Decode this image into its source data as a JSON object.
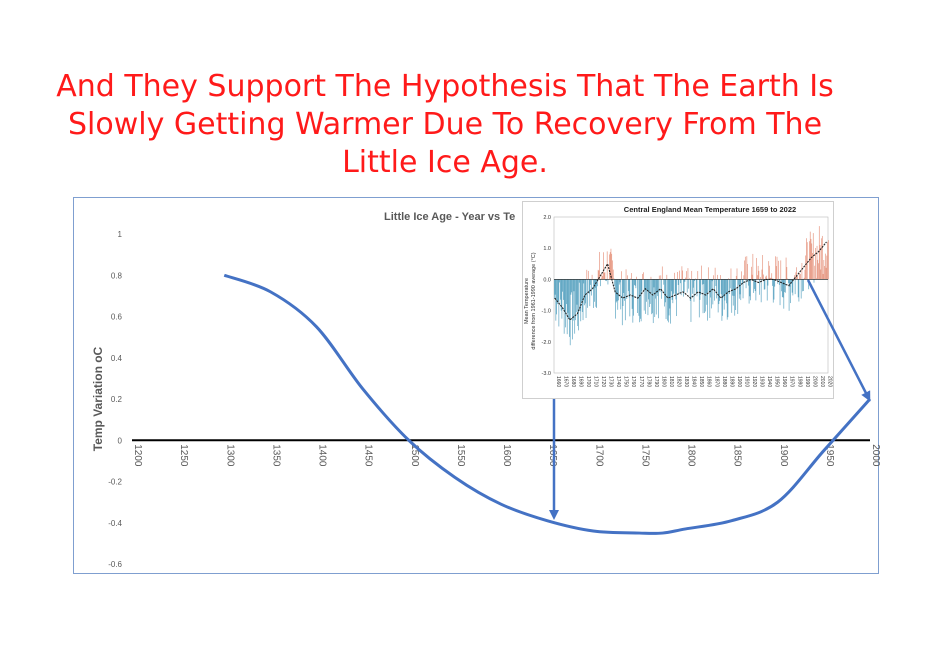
{
  "slide": {
    "title_lines": [
      "And They Support The Hypothesis That The Earth Is",
      "Slowly Getting Warmer Due To Recovery From The",
      "Little Ice Age."
    ]
  },
  "colors": {
    "title": "#ff1a1a",
    "main_line": "#4472c4",
    "arrow": "#4472c4",
    "inset_positive": "#e07a5f",
    "inset_negative": "#2e8bb0",
    "inset_smooth": "#222222"
  },
  "chart_data": [
    {
      "type": "line",
      "title": "Little Ice Age - Year vs Te",
      "xlabel": "",
      "ylabel": "Temp Variation oC",
      "xlim": [
        1200,
        2000
      ],
      "ylim": [
        -0.6,
        1.0
      ],
      "x_ticks": [
        "1200",
        "1250",
        "1300",
        "1350",
        "1400",
        "1450",
        "1500",
        "1550",
        "1600",
        "1650",
        "1700",
        "1750",
        "1800",
        "1850",
        "1900",
        "1950",
        "2000"
      ],
      "y_ticks": [
        "1",
        "0.8",
        "0.6",
        "0.4",
        "0.2",
        "0",
        "-0.2",
        "-0.4",
        "-0.6"
      ],
      "grid": false,
      "series": [
        {
          "x": [
            1300,
            1350,
            1400,
            1450,
            1500,
            1550,
            1600,
            1650,
            1700,
            1750,
            1775,
            1800,
            1850,
            1900,
            1950,
            2000
          ],
          "y": [
            0.8,
            0.72,
            0.55,
            0.25,
            0.0,
            -0.18,
            -0.31,
            -0.39,
            -0.44,
            -0.45,
            -0.45,
            -0.43,
            -0.39,
            -0.3,
            -0.05,
            0.2
          ]
        }
      ]
    },
    {
      "type": "bar",
      "title": "Central England Mean Temperature 1659 to 2022",
      "ylabel_lines": [
        "Mean Temperature",
        "difference from 1961-1990 average (°C)"
      ],
      "ylim": [
        -3.0,
        2.0
      ],
      "y_ticks": [
        "2.0",
        "1.0",
        "0.0",
        "-1.0",
        "-2.0",
        "-3.0"
      ],
      "x_ticks": [
        "1660",
        "1670",
        "1680",
        "1690",
        "1700",
        "1710",
        "1720",
        "1730",
        "1740",
        "1750",
        "1760",
        "1770",
        "1780",
        "1790",
        "1800",
        "1810",
        "1820",
        "1830",
        "1840",
        "1850",
        "1860",
        "1870",
        "1880",
        "1890",
        "1900",
        "1910",
        "1920",
        "1930",
        "1940",
        "1950",
        "1960",
        "1970",
        "1980",
        "1990",
        "2000",
        "2010",
        "2020"
      ],
      "smoothed": {
        "x": [
          1660,
          1670,
          1680,
          1690,
          1700,
          1710,
          1720,
          1730,
          1740,
          1750,
          1760,
          1770,
          1780,
          1790,
          1800,
          1810,
          1820,
          1830,
          1840,
          1850,
          1860,
          1870,
          1880,
          1890,
          1900,
          1910,
          1920,
          1930,
          1940,
          1950,
          1960,
          1970,
          1980,
          1990,
          2000,
          2010,
          2020
        ],
        "y": [
          -0.6,
          -0.9,
          -1.3,
          -1.1,
          -0.5,
          -0.3,
          0.1,
          0.5,
          -0.4,
          -0.6,
          -0.5,
          -0.6,
          -0.3,
          -0.5,
          -0.3,
          -0.6,
          -0.5,
          -0.4,
          -0.6,
          -0.4,
          -0.5,
          -0.3,
          -0.6,
          -0.4,
          -0.3,
          -0.1,
          0.0,
          -0.1,
          0.0,
          0.0,
          -0.1,
          -0.2,
          0.1,
          0.4,
          0.7,
          0.9,
          1.2
        ]
      }
    }
  ]
}
